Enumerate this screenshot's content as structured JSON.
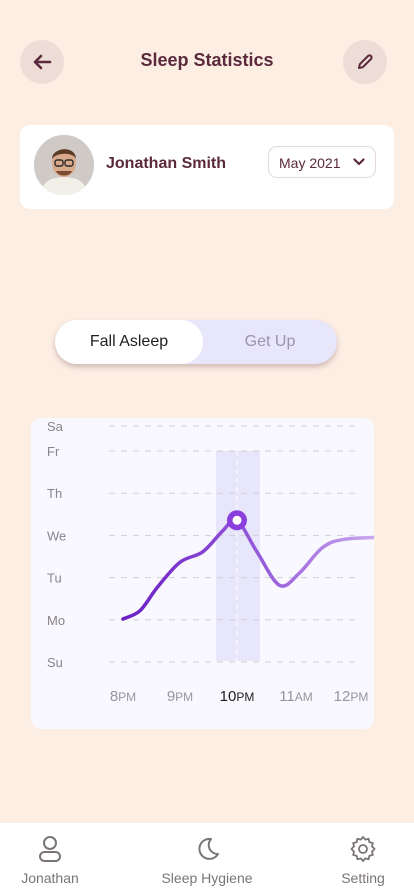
{
  "header": {
    "title": "Sleep Statistics",
    "back_icon": "arrow-left-icon",
    "edit_icon": "pencil-icon"
  },
  "profile": {
    "name": "Jonathan Smith",
    "month": "May 2021"
  },
  "toggle": {
    "active": "Fall Asleep",
    "inactive": "Get Up"
  },
  "chart_data": {
    "type": "line",
    "title": "",
    "xlabel": "",
    "ylabel": "",
    "x_ticks": [
      {
        "main": "8",
        "suffix": "PM"
      },
      {
        "main": "9",
        "suffix": "PM"
      },
      {
        "main": "10",
        "suffix": "PM"
      },
      {
        "main": "11",
        "suffix": "AM"
      },
      {
        "main": "12",
        "suffix": "PM"
      }
    ],
    "y_ticks": [
      "Sa",
      "Fr",
      "Th",
      "We",
      "Tu",
      "Mo",
      "Su"
    ],
    "highlighted_x": "10PM",
    "highlighted_y": "We",
    "grid": true,
    "colors": {
      "line_start": "#6a1fc4",
      "line_end": "#c9a6ee",
      "highlight": "#e8e6fb"
    },
    "series": [
      {
        "points": [
          {
            "x": 8.0,
            "y": 1.0
          },
          {
            "x": 8.3,
            "y": 1.2
          },
          {
            "x": 8.6,
            "y": 1.75
          },
          {
            "x": 9.0,
            "y": 2.35
          },
          {
            "x": 9.4,
            "y": 2.6
          },
          {
            "x": 9.75,
            "y": 3.1
          },
          {
            "x": 10.0,
            "y": 3.35
          },
          {
            "x": 10.35,
            "y": 2.6
          },
          {
            "x": 10.75,
            "y": 1.8
          },
          {
            "x": 11.1,
            "y": 2.1
          },
          {
            "x": 11.5,
            "y": 2.7
          },
          {
            "x": 11.9,
            "y": 2.9
          },
          {
            "x": 12.7,
            "y": 2.95
          }
        ]
      }
    ]
  },
  "bottom_nav": [
    {
      "label": "Jonathan",
      "icon": "user-icon"
    },
    {
      "label": "Sleep Hygiene",
      "icon": "moon-icon"
    },
    {
      "label": "Setting",
      "icon": "gear-icon"
    }
  ]
}
